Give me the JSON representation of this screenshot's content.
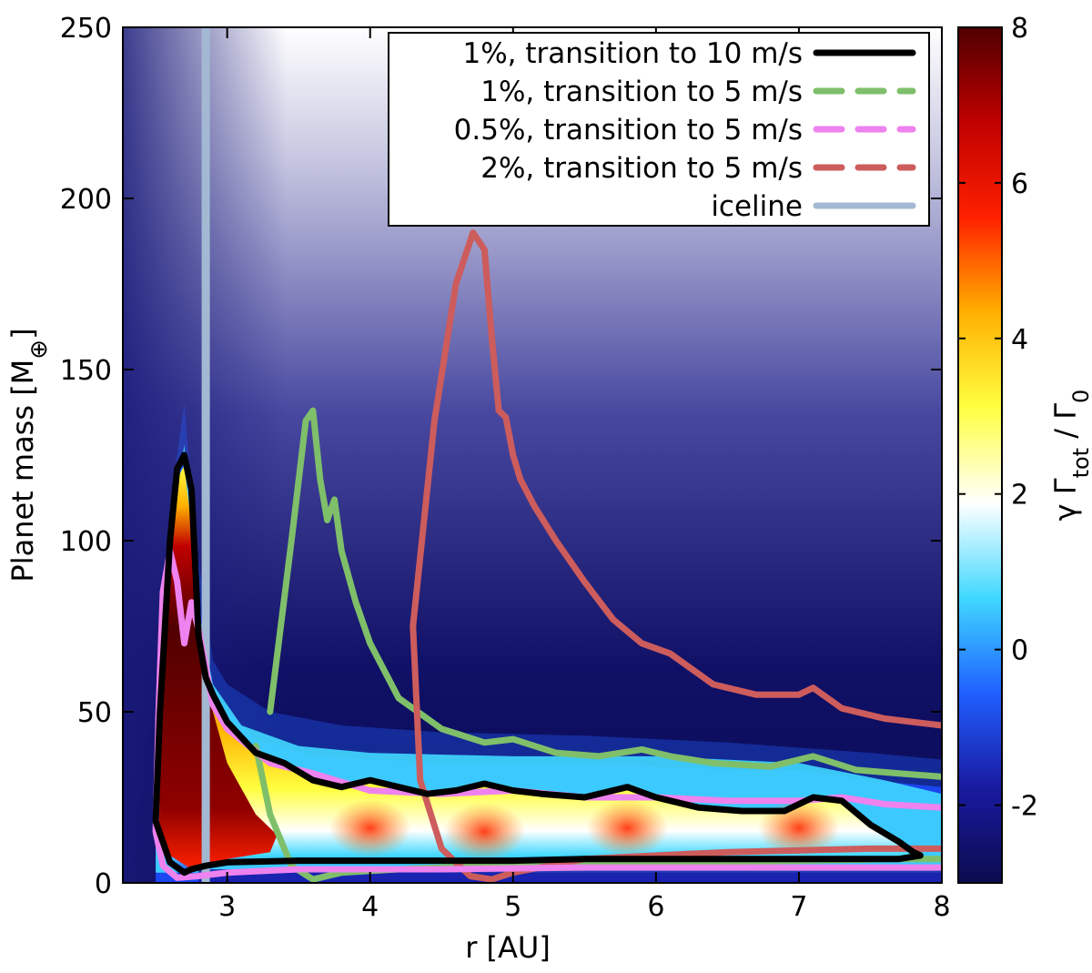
{
  "chart_data": {
    "type": "heatmap",
    "xlabel": "r [AU]",
    "ylabel": "Planet mass [M",
    "ylabel_sub": "⊕",
    "ylabel_close": "]",
    "xlim": [
      2.27,
      8.0
    ],
    "ylim": [
      0,
      250
    ],
    "xticks": [
      3,
      4,
      5,
      6,
      7,
      8
    ],
    "yticks": [
      0,
      50,
      100,
      150,
      200,
      250
    ],
    "colorbar": {
      "label_parts": [
        "γ Γ",
        "tot",
        " / Γ",
        "0"
      ],
      "range": [
        -3,
        8
      ],
      "ticks": [
        -2,
        0,
        2,
        4,
        6,
        8
      ],
      "tick_labels": [
        "-2",
        "0",
        "2",
        "4",
        "6",
        "8"
      ],
      "colormap": [
        "#0b0b4e",
        "#1a1aa0",
        "#2060ff",
        "#40d8ff",
        "#ffffff",
        "#ffff40",
        "#ffb000",
        "#ff2000",
        "#c00000",
        "#500000"
      ]
    },
    "legend": [
      {
        "label": "1%, transition to 10 m/s",
        "color": "#000000",
        "style": "solid"
      },
      {
        "label": "1%, transition to 5 m/s",
        "color": "#7fbf6a",
        "style": "dashed"
      },
      {
        "label": "0.5%, transition to 5 m/s",
        "color": "#ee82ee",
        "style": "dashed"
      },
      {
        "label": "2%, transition to 5 m/s",
        "color": "#cd5c5c",
        "style": "dashed"
      },
      {
        "label": "iceline",
        "color": "#a3b9d3",
        "style": "solid"
      }
    ],
    "series": [
      {
        "name": "1%, transition to 10 m/s",
        "color": "#000000",
        "x": [
          2.5,
          2.53,
          2.6,
          2.65,
          2.7,
          2.75,
          2.78,
          2.8,
          2.85,
          2.9,
          3.0,
          3.2,
          3.4,
          3.6,
          3.8,
          4.0,
          4.2,
          4.4,
          4.6,
          4.8,
          5.0,
          5.2,
          5.5,
          5.8,
          6.0,
          6.3,
          6.6,
          6.9,
          7.1,
          7.3,
          7.5,
          7.7,
          7.8,
          7.85,
          7.7,
          7.4,
          7.0,
          6.5,
          6.0,
          5.5,
          5.0,
          4.5,
          4.0,
          3.5,
          3.0,
          2.85,
          2.75,
          2.7,
          2.6,
          2.5
        ],
        "y": [
          18,
          50,
          100,
          121,
          125,
          115,
          90,
          72,
          60,
          55,
          47,
          38,
          35,
          30,
          28,
          30,
          28,
          26,
          27,
          29,
          27,
          26,
          25,
          28,
          25,
          22,
          21,
          21,
          25,
          24,
          17,
          12,
          9,
          8,
          7,
          7,
          7,
          7,
          7,
          7,
          6.5,
          6.5,
          6.5,
          6.5,
          6,
          5,
          4,
          3,
          6,
          18
        ],
        "closed": true
      },
      {
        "name": "1%, transition to 5 m/s",
        "color": "#7fbf6a",
        "x": [
          3.3,
          3.45,
          3.55,
          3.6,
          3.65,
          3.7,
          3.75,
          3.8,
          3.9,
          4.0,
          4.2,
          4.5,
          4.8,
          5.0,
          5.3,
          5.6,
          5.9,
          6.1,
          6.4,
          6.8,
          7.1,
          7.4,
          7.7,
          8.0
        ],
        "y": [
          50,
          100,
          135,
          138,
          118,
          106,
          112,
          97,
          82,
          70,
          54,
          45,
          41,
          42,
          38,
          37,
          39,
          37,
          35,
          34,
          37,
          33,
          32,
          31
        ]
      },
      {
        "name": "1%, transition to 5 m/s (lower)",
        "color": "#7fbf6a",
        "x": [
          3.2,
          3.3,
          3.45,
          3.6,
          3.8,
          4.2,
          4.8,
          5.5,
          6.2,
          7.0,
          7.7,
          8.0
        ],
        "y": [
          40,
          20,
          5,
          1,
          3,
          4,
          5,
          6,
          6,
          6.5,
          7,
          7
        ]
      },
      {
        "name": "0.5%, transition to 5 m/s",
        "color": "#ee82ee",
        "x": [
          2.55,
          2.6,
          2.65,
          2.7,
          2.75,
          2.8,
          2.9,
          3.0,
          3.3,
          3.6,
          4.0,
          4.5,
          5.0,
          5.5,
          6.0,
          6.5,
          7.0,
          7.3,
          7.6,
          8.0
        ],
        "y": [
          85,
          97,
          88,
          70,
          82,
          74,
          52,
          45,
          35,
          32,
          27,
          26,
          27,
          25,
          25,
          24,
          24,
          25,
          23,
          22
        ]
      },
      {
        "name": "0.5%, transition to 5 m/s (lower)",
        "color": "#ee82ee",
        "x": [
          2.55,
          2.52,
          2.5,
          2.55,
          2.65,
          2.8,
          3.0,
          3.5,
          4.5,
          5.5,
          6.5,
          7.5,
          8.0
        ],
        "y": [
          85,
          50,
          15,
          5,
          1.5,
          2,
          3,
          4,
          4,
          4.5,
          4.5,
          4.5,
          4.5
        ]
      },
      {
        "name": "2%, transition to 5 m/s",
        "color": "#cd5c5c",
        "x": [
          4.3,
          4.45,
          4.6,
          4.72,
          4.8,
          4.85,
          4.9,
          4.95,
          5.0,
          5.05,
          5.15,
          5.3,
          5.5,
          5.7,
          5.9,
          6.1,
          6.4,
          6.7,
          7.0,
          7.1,
          7.3,
          7.6,
          8.0
        ],
        "y": [
          75,
          135,
          175,
          190,
          185,
          160,
          138,
          136,
          125,
          118,
          110,
          100,
          88,
          77,
          70,
          67,
          58,
          55,
          55,
          57,
          51,
          48,
          46
        ]
      },
      {
        "name": "2%, transition to 5 m/s (lower)",
        "color": "#cd5c5c",
        "x": [
          4.3,
          4.35,
          4.5,
          4.7,
          4.85,
          5.0,
          5.5,
          6.5,
          7.5,
          8.0
        ],
        "y": [
          75,
          30,
          10,
          2,
          1,
          3,
          7,
          9,
          10,
          10
        ]
      },
      {
        "name": "iceline",
        "color": "#a3b9d3",
        "x": [
          2.85,
          2.85
        ],
        "y": [
          0,
          250
        ]
      }
    ]
  }
}
